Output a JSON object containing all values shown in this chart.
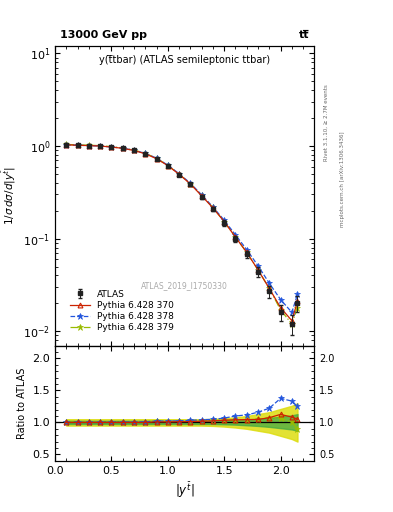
{
  "title_left": "13000 GeV pp",
  "title_right": "tt̅",
  "panel_title": "y(t̅tbar) (ATLAS semileptonic ttbar)",
  "watermark": "ATLAS_2019_I1750330",
  "right_label1": "Rivet 3.1.10, ≥ 2.7M events",
  "right_label2": "mcplots.cern.ch [arXiv:1306.3436]",
  "ylabel_main": "1 / σ dσ / d |y^{tbar}|",
  "ylabel_ratio": "Ratio to ATLAS",
  "x_data": [
    0.1,
    0.2,
    0.3,
    0.4,
    0.5,
    0.6,
    0.7,
    0.8,
    0.9,
    1.0,
    1.1,
    1.2,
    1.3,
    1.4,
    1.5,
    1.6,
    1.7,
    1.8,
    1.9,
    2.0,
    2.1,
    2.15
  ],
  "atlas_y": [
    1.03,
    1.02,
    1.01,
    1.0,
    0.975,
    0.945,
    0.895,
    0.825,
    0.725,
    0.61,
    0.49,
    0.385,
    0.285,
    0.21,
    0.148,
    0.1,
    0.068,
    0.044,
    0.027,
    0.016,
    0.012,
    0.02
  ],
  "atlas_yerr": [
    0.035,
    0.035,
    0.035,
    0.035,
    0.03,
    0.03,
    0.028,
    0.026,
    0.023,
    0.02,
    0.018,
    0.016,
    0.014,
    0.012,
    0.01,
    0.008,
    0.006,
    0.005,
    0.004,
    0.003,
    0.003,
    0.004
  ],
  "py370_y": [
    1.03,
    1.02,
    1.01,
    1.0,
    0.975,
    0.945,
    0.895,
    0.825,
    0.73,
    0.615,
    0.495,
    0.39,
    0.29,
    0.215,
    0.153,
    0.104,
    0.071,
    0.046,
    0.029,
    0.018,
    0.013,
    0.021
  ],
  "py378_y": [
    1.03,
    1.02,
    1.01,
    1.0,
    0.975,
    0.948,
    0.9,
    0.833,
    0.74,
    0.622,
    0.502,
    0.397,
    0.297,
    0.22,
    0.158,
    0.11,
    0.076,
    0.051,
    0.033,
    0.022,
    0.016,
    0.025
  ],
  "py379_y": [
    1.04,
    1.03,
    1.02,
    1.01,
    0.985,
    0.953,
    0.905,
    0.835,
    0.738,
    0.618,
    0.498,
    0.392,
    0.293,
    0.217,
    0.153,
    0.104,
    0.071,
    0.046,
    0.029,
    0.017,
    0.012,
    0.018
  ],
  "atlas_band_green": [
    0.025,
    0.025,
    0.025,
    0.025,
    0.025,
    0.025,
    0.025,
    0.025,
    0.025,
    0.025,
    0.025,
    0.025,
    0.025,
    0.025,
    0.03,
    0.035,
    0.045,
    0.055,
    0.07,
    0.09,
    0.11,
    0.13
  ],
  "atlas_band_yellow": [
    0.05,
    0.05,
    0.05,
    0.05,
    0.05,
    0.05,
    0.05,
    0.05,
    0.05,
    0.05,
    0.05,
    0.05,
    0.05,
    0.055,
    0.065,
    0.08,
    0.1,
    0.13,
    0.16,
    0.21,
    0.26,
    0.3
  ],
  "color_atlas": "#222222",
  "color_py370": "#cc2200",
  "color_py378": "#2255dd",
  "color_py379": "#99bb00",
  "color_band_green": "#44aa44",
  "color_band_yellow": "#dddd11",
  "xlim": [
    0.0,
    2.3
  ],
  "ylim_main": [
    0.007,
    12.0
  ],
  "ylim_ratio": [
    0.4,
    2.2
  ],
  "ratio_yticks": [
    0.5,
    1.0,
    1.5,
    2.0
  ],
  "main_yticks_major": [
    0.01,
    0.1,
    1.0,
    10.0
  ]
}
